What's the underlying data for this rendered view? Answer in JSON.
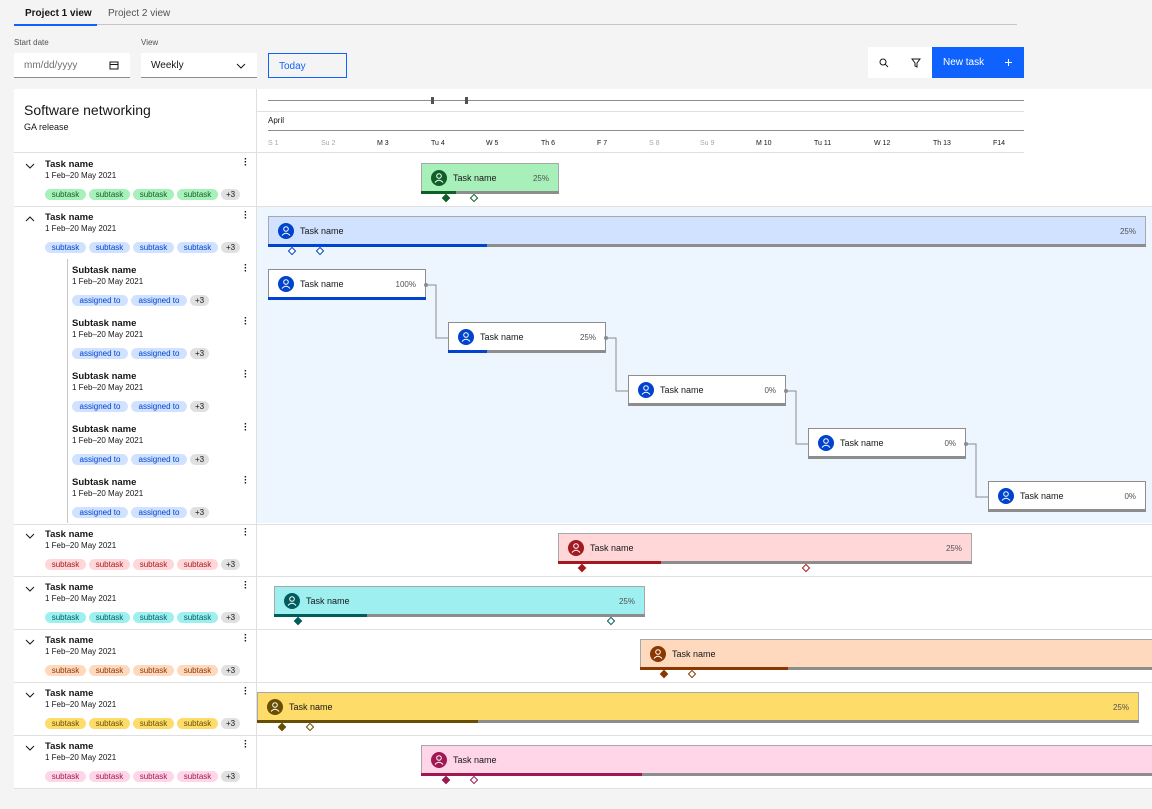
{
  "tabs": [
    "Project 1 view",
    "Project 2 view"
  ],
  "toolbar": {
    "start_date_label": "Start date",
    "start_date_placeholder": "mm/dd/yyyy",
    "view_label": "View",
    "view_value": "Weekly",
    "today_button": "Today",
    "new_task_button": "New task"
  },
  "project": {
    "title": "Software networking",
    "subtitle": "GA release"
  },
  "timeline": {
    "month": "April",
    "days": [
      "S 1",
      "Su 2",
      "M 3",
      "Tu 4",
      "W 5",
      "Th 6",
      "F 7",
      "S 8",
      "Su 9",
      "M 10",
      "Tu 11",
      "W 12",
      "Th 13",
      "F14"
    ]
  },
  "tasks": [
    {
      "name": "Task name",
      "dates": "1 Feb–20 May 2021",
      "tags": [
        "subtask",
        "subtask",
        "subtask",
        "subtask",
        "+3"
      ],
      "bar": {
        "label": "Task name",
        "percent": "25%"
      }
    },
    {
      "name": "Task name",
      "dates": "1 Feb–20 May 2021",
      "tags": [
        "subtask",
        "subtask",
        "subtask",
        "subtask",
        "+3"
      ],
      "bar": {
        "label": "Task name",
        "percent": "25%"
      },
      "subtasks": [
        {
          "name": "Subtask name",
          "dates": "1 Feb–20 May 2021",
          "tags": [
            "assigned to",
            "assigned to",
            "+3"
          ],
          "bar": {
            "label": "Task name",
            "percent": "100%"
          }
        },
        {
          "name": "Subtask name",
          "dates": "1 Feb–20 May 2021",
          "tags": [
            "assigned to",
            "assigned to",
            "+3"
          ],
          "bar": {
            "label": "Task name",
            "percent": "25%"
          }
        },
        {
          "name": "Subtask name",
          "dates": "1 Feb–20 May 2021",
          "tags": [
            "assigned to",
            "assigned to",
            "+3"
          ],
          "bar": {
            "label": "Task name",
            "percent": "0%"
          }
        },
        {
          "name": "Subtask name",
          "dates": "1 Feb–20 May 2021",
          "tags": [
            "assigned to",
            "assigned to",
            "+3"
          ],
          "bar": {
            "label": "Task name",
            "percent": "0%"
          }
        },
        {
          "name": "Subtask name",
          "dates": "1 Feb–20 May 2021",
          "tags": [
            "assigned to",
            "assigned to",
            "+3"
          ],
          "bar": {
            "label": "Task name",
            "percent": "0%"
          }
        }
      ]
    },
    {
      "name": "Task name",
      "dates": "1 Feb–20 May 2021",
      "tags": [
        "subtask",
        "subtask",
        "subtask",
        "subtask",
        "+3"
      ],
      "bar": {
        "label": "Task name",
        "percent": "25%"
      }
    },
    {
      "name": "Task name",
      "dates": "1 Feb–20 May 2021",
      "tags": [
        "subtask",
        "subtask",
        "subtask",
        "subtask",
        "+3"
      ],
      "bar": {
        "label": "Task name",
        "percent": "25%"
      }
    },
    {
      "name": "Task name",
      "dates": "1 Feb–20 May 2021",
      "tags": [
        "subtask",
        "subtask",
        "subtask",
        "subtask",
        "+3"
      ],
      "bar": {
        "label": "Task name"
      }
    },
    {
      "name": "Task name",
      "dates": "1 Feb–20 May 2021",
      "tags": [
        "subtask",
        "subtask",
        "subtask",
        "subtask",
        "+3"
      ],
      "bar": {
        "label": "Task name",
        "percent": "25%"
      }
    },
    {
      "name": "Task name",
      "dates": "1 Feb–20 May 2021",
      "tags": [
        "subtask",
        "subtask",
        "subtask",
        "subtask",
        "+3"
      ],
      "bar": {
        "label": "Task name"
      }
    }
  ]
}
